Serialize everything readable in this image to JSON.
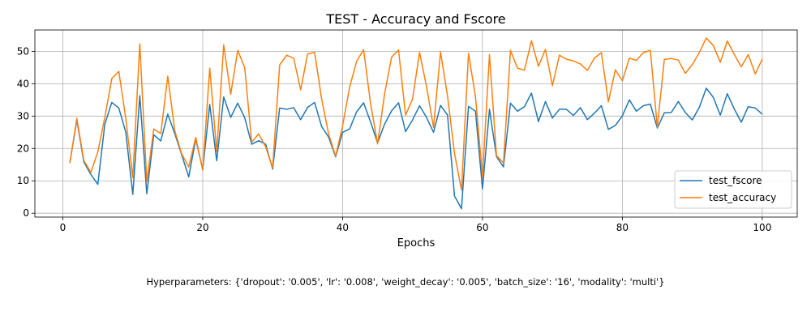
{
  "chart_data": {
    "type": "line",
    "title": "TEST - Accuracy and Fscore",
    "xlabel": "Epochs",
    "ylabel": "",
    "xlim": [
      -4,
      105
    ],
    "ylim": [
      -1.2,
      56.6
    ],
    "xticks": [
      0,
      20,
      40,
      60,
      80,
      100
    ],
    "yticks": [
      0,
      10,
      20,
      30,
      40,
      50
    ],
    "grid": true,
    "legend_position": "lower-right",
    "series": [
      {
        "name": "test_fscore",
        "color": "#1f77b4",
        "x": [
          1,
          2,
          3,
          4,
          5,
          6,
          7,
          8,
          9,
          10,
          11,
          12,
          13,
          14,
          15,
          16,
          17,
          18,
          19,
          20,
          21,
          22,
          23,
          24,
          25,
          26,
          27,
          28,
          29,
          30,
          31,
          32,
          33,
          34,
          35,
          36,
          37,
          38,
          39,
          40,
          41,
          42,
          43,
          44,
          45,
          46,
          47,
          48,
          49,
          50,
          51,
          52,
          53,
          54,
          55,
          56,
          57,
          58,
          59,
          60,
          61,
          62,
          63,
          64,
          65,
          66,
          67,
          68,
          69,
          70,
          71,
          72,
          73,
          74,
          75,
          76,
          77,
          78,
          79,
          80,
          81,
          82,
          83,
          84,
          85,
          86,
          87,
          88,
          89,
          90,
          91,
          92,
          93,
          94,
          95,
          96,
          97,
          98,
          99,
          100
        ],
        "values": [
          15.5,
          28.8,
          15.8,
          12.0,
          8.9,
          27.5,
          34.2,
          32.5,
          25.0,
          5.8,
          36.3,
          6.0,
          24.2,
          22.3,
          30.6,
          24.6,
          18.0,
          11.2,
          22.9,
          13.5,
          33.6,
          16.2,
          35.9,
          29.6,
          34.0,
          29.5,
          21.3,
          22.4,
          21.3,
          13.6,
          32.5,
          32.1,
          32.6,
          28.9,
          32.7,
          34.2,
          26.8,
          23.5,
          17.4,
          25.0,
          26.0,
          31.3,
          34.1,
          28.2,
          21.7,
          27.5,
          31.6,
          34.1,
          25.2,
          28.8,
          33.2,
          29.6,
          25.0,
          33.3,
          30.3,
          5.3,
          1.4,
          33.0,
          31.5,
          7.5,
          32.1,
          17.5,
          14.3,
          34.0,
          31.5,
          32.9,
          37.1,
          28.3,
          34.5,
          29.4,
          32.1,
          32.1,
          30.2,
          32.6,
          28.9,
          30.9,
          33.2,
          25.9,
          27.1,
          30.1,
          35.0,
          31.5,
          33.2,
          33.7,
          26.3,
          31.0,
          31.1,
          34.5,
          31.1,
          28.8,
          32.7,
          38.6,
          35.8,
          30.3,
          36.9,
          32.2,
          28.1,
          32.9,
          32.5,
          30.6
        ]
      },
      {
        "name": "test_accuracy",
        "color": "#ff7f0e",
        "x": [
          1,
          2,
          3,
          4,
          5,
          6,
          7,
          8,
          9,
          10,
          11,
          12,
          13,
          14,
          15,
          16,
          17,
          18,
          19,
          20,
          21,
          22,
          23,
          24,
          25,
          26,
          27,
          28,
          29,
          30,
          31,
          32,
          33,
          34,
          35,
          36,
          37,
          38,
          39,
          40,
          41,
          42,
          43,
          44,
          45,
          46,
          47,
          48,
          49,
          50,
          51,
          52,
          53,
          54,
          55,
          56,
          57,
          58,
          59,
          60,
          61,
          62,
          63,
          64,
          65,
          66,
          67,
          68,
          69,
          70,
          71,
          72,
          73,
          74,
          75,
          76,
          77,
          78,
          79,
          80,
          81,
          82,
          83,
          84,
          85,
          86,
          87,
          88,
          89,
          90,
          91,
          92,
          93,
          94,
          95,
          96,
          97,
          98,
          99,
          100
        ],
        "values": [
          15.5,
          29.3,
          16.3,
          12.6,
          18.9,
          29.6,
          41.6,
          43.8,
          29.2,
          11.0,
          52.3,
          9.7,
          26.0,
          24.6,
          42.3,
          25.5,
          18.3,
          14.3,
          23.4,
          13.3,
          44.8,
          19.0,
          52.0,
          36.7,
          50.3,
          45.0,
          21.9,
          24.5,
          20.5,
          14.0,
          45.8,
          48.8,
          47.9,
          38.1,
          49.2,
          49.7,
          35.3,
          24.5,
          17.6,
          27.0,
          38.9,
          46.9,
          50.5,
          33.9,
          21.4,
          36.8,
          48.2,
          50.4,
          30.3,
          35.2,
          49.7,
          39.1,
          26.5,
          49.8,
          36.2,
          18.5,
          7.1,
          49.4,
          36.0,
          11.3,
          49.0,
          17.8,
          15.5,
          50.3,
          44.8,
          44.2,
          53.3,
          45.4,
          50.6,
          39.4,
          48.8,
          47.6,
          47.0,
          46.1,
          44.1,
          47.9,
          49.6,
          34.4,
          44.3,
          40.9,
          47.9,
          47.2,
          49.6,
          50.3,
          26.6,
          47.5,
          47.8,
          47.3,
          43.2,
          45.9,
          49.6,
          54.1,
          51.8,
          46.6,
          53.2,
          49.1,
          45.2,
          49.0,
          43.0,
          47.6
        ]
      }
    ]
  },
  "caption": "Hyperparameters: {'dropout': '0.005', 'lr': '0.008', 'weight_decay': '0.005', 'batch_size': '16', 'modality': 'multi'}"
}
